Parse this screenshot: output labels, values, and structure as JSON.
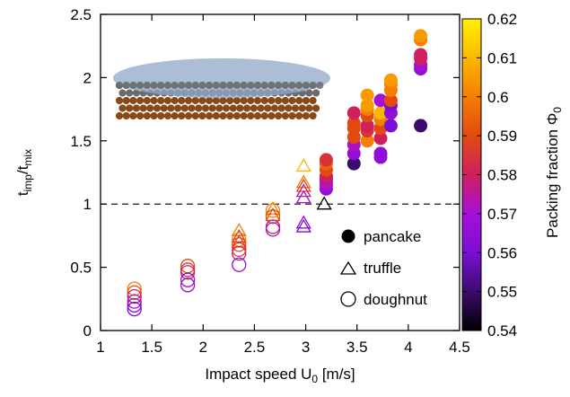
{
  "chart_data": {
    "type": "scatter",
    "xlabel": "Impact speed U",
    "xlabel_sub": "0",
    "xlabel_unit": " [m/s]",
    "ylabel": "t",
    "ylabel_sub1": "imp",
    "ylabel_mid": "/t",
    "ylabel_sub2": "mix",
    "xlim": [
      1,
      4.5
    ],
    "ylim": [
      0,
      2.5
    ],
    "xticks": [
      "1",
      "1.5",
      "2",
      "2.5",
      "3",
      "3.5",
      "4",
      "4.5"
    ],
    "yticks": [
      "0",
      "0.5",
      "1",
      "1.5",
      "2",
      "2.5"
    ],
    "reference_line": {
      "y": 1,
      "style": "dashed"
    },
    "colorbar": {
      "label": "Packing fraction Φ",
      "label_sub": "0",
      "range": [
        0.54,
        0.62
      ],
      "ticks": [
        "0.54",
        "0.55",
        "0.56",
        "0.57",
        "0.58",
        "0.59",
        "0.6",
        "0.61",
        "0.62"
      ],
      "colormap": [
        "#000000",
        "#3a0c6b",
        "#7a0fd4",
        "#a60fd8",
        "#cf1f5e",
        "#e24a10",
        "#f57e05",
        "#fbb800",
        "#fff200"
      ]
    },
    "legend": {
      "position": "lower-right",
      "entries": [
        {
          "label": "pancake",
          "marker": "filled-circle"
        },
        {
          "label": "truffle",
          "marker": "open-triangle"
        },
        {
          "label": "doughnut",
          "marker": "open-circle"
        }
      ]
    },
    "series": [
      {
        "name": "pancake",
        "marker": "filled-circle",
        "points": [
          {
            "x": 3.2,
            "y": 1.12,
            "phi": 0.565
          },
          {
            "x": 3.2,
            "y": 1.15,
            "phi": 0.57
          },
          {
            "x": 3.2,
            "y": 1.18,
            "phi": 0.575
          },
          {
            "x": 3.2,
            "y": 1.2,
            "phi": 0.572
          },
          {
            "x": 3.2,
            "y": 1.22,
            "phi": 0.58
          },
          {
            "x": 3.2,
            "y": 1.27,
            "phi": 0.59
          },
          {
            "x": 3.2,
            "y": 1.32,
            "phi": 0.595
          },
          {
            "x": 3.2,
            "y": 1.35,
            "phi": 0.585
          },
          {
            "x": 3.47,
            "y": 1.32,
            "phi": 0.55
          },
          {
            "x": 3.47,
            "y": 1.4,
            "phi": 0.565
          },
          {
            "x": 3.47,
            "y": 1.47,
            "phi": 0.572
          },
          {
            "x": 3.47,
            "y": 1.53,
            "phi": 0.59
          },
          {
            "x": 3.47,
            "y": 1.6,
            "phi": 0.59
          },
          {
            "x": 3.47,
            "y": 1.64,
            "phi": 0.59
          },
          {
            "x": 3.47,
            "y": 1.72,
            "phi": 0.58
          },
          {
            "x": 3.6,
            "y": 1.5,
            "phi": 0.6
          },
          {
            "x": 3.6,
            "y": 1.58,
            "phi": 0.585
          },
          {
            "x": 3.6,
            "y": 1.62,
            "phi": 0.58
          },
          {
            "x": 3.6,
            "y": 1.7,
            "phi": 0.59
          },
          {
            "x": 3.6,
            "y": 1.75,
            "phi": 0.6
          },
          {
            "x": 3.6,
            "y": 1.78,
            "phi": 0.605
          },
          {
            "x": 3.6,
            "y": 1.86,
            "phi": 0.605
          },
          {
            "x": 3.73,
            "y": 1.37,
            "phi": 0.565
          },
          {
            "x": 3.73,
            "y": 1.4,
            "phi": 0.565
          },
          {
            "x": 3.73,
            "y": 1.52,
            "phi": 0.58
          },
          {
            "x": 3.73,
            "y": 1.6,
            "phi": 0.59
          },
          {
            "x": 3.73,
            "y": 1.67,
            "phi": 0.6
          },
          {
            "x": 3.73,
            "y": 1.72,
            "phi": 0.61
          },
          {
            "x": 3.73,
            "y": 1.82,
            "phi": 0.57
          },
          {
            "x": 3.83,
            "y": 1.62,
            "phi": 0.56
          },
          {
            "x": 3.83,
            "y": 1.72,
            "phi": 0.565
          },
          {
            "x": 3.83,
            "y": 1.78,
            "phi": 0.56
          },
          {
            "x": 3.83,
            "y": 1.82,
            "phi": 0.59
          },
          {
            "x": 3.83,
            "y": 1.9,
            "phi": 0.6
          },
          {
            "x": 3.83,
            "y": 1.95,
            "phi": 0.6
          },
          {
            "x": 3.83,
            "y": 1.98,
            "phi": 0.605
          },
          {
            "x": 4.12,
            "y": 1.62,
            "phi": 0.55
          },
          {
            "x": 4.12,
            "y": 2.07,
            "phi": 0.565
          },
          {
            "x": 4.12,
            "y": 2.1,
            "phi": 0.57
          },
          {
            "x": 4.12,
            "y": 2.15,
            "phi": 0.58
          },
          {
            "x": 4.12,
            "y": 2.18,
            "phi": 0.58
          },
          {
            "x": 4.12,
            "y": 2.3,
            "phi": 0.6
          },
          {
            "x": 4.12,
            "y": 2.33,
            "phi": 0.605
          }
        ]
      },
      {
        "name": "truffle",
        "marker": "open-triangle",
        "points": [
          {
            "x": 2.35,
            "y": 0.79,
            "phi": 0.6
          },
          {
            "x": 2.35,
            "y": 0.74,
            "phi": 0.585
          },
          {
            "x": 2.35,
            "y": 0.7,
            "phi": 0.59
          },
          {
            "x": 2.68,
            "y": 0.96,
            "phi": 0.6
          },
          {
            "x": 2.68,
            "y": 0.91,
            "phi": 0.59
          },
          {
            "x": 2.98,
            "y": 1.3,
            "phi": 0.61
          },
          {
            "x": 2.98,
            "y": 1.17,
            "phi": 0.6
          },
          {
            "x": 2.98,
            "y": 1.14,
            "phi": 0.59
          },
          {
            "x": 2.98,
            "y": 1.1,
            "phi": 0.575
          },
          {
            "x": 2.98,
            "y": 1.05,
            "phi": 0.57
          },
          {
            "x": 2.98,
            "y": 0.85,
            "phi": 0.565
          },
          {
            "x": 2.98,
            "y": 0.82,
            "phi": 0.56
          },
          {
            "x": 3.18,
            "y": 1.0,
            "phi": 0.54
          }
        ]
      },
      {
        "name": "doughnut",
        "marker": "open-circle",
        "points": [
          {
            "x": 1.33,
            "y": 0.33,
            "phi": 0.6
          },
          {
            "x": 1.33,
            "y": 0.3,
            "phi": 0.59
          },
          {
            "x": 1.33,
            "y": 0.27,
            "phi": 0.58
          },
          {
            "x": 1.33,
            "y": 0.23,
            "phi": 0.57
          },
          {
            "x": 1.33,
            "y": 0.2,
            "phi": 0.565
          },
          {
            "x": 1.33,
            "y": 0.17,
            "phi": 0.56
          },
          {
            "x": 1.85,
            "y": 0.51,
            "phi": 0.59
          },
          {
            "x": 1.85,
            "y": 0.48,
            "phi": 0.585
          },
          {
            "x": 1.85,
            "y": 0.46,
            "phi": 0.58
          },
          {
            "x": 1.85,
            "y": 0.4,
            "phi": 0.57
          },
          {
            "x": 1.85,
            "y": 0.36,
            "phi": 0.565
          },
          {
            "x": 2.35,
            "y": 0.72,
            "phi": 0.6
          },
          {
            "x": 2.35,
            "y": 0.68,
            "phi": 0.59
          },
          {
            "x": 2.35,
            "y": 0.64,
            "phi": 0.585
          },
          {
            "x": 2.35,
            "y": 0.61,
            "phi": 0.58
          },
          {
            "x": 2.35,
            "y": 0.52,
            "phi": 0.565
          },
          {
            "x": 2.68,
            "y": 0.95,
            "phi": 0.6
          },
          {
            "x": 2.68,
            "y": 0.9,
            "phi": 0.59
          },
          {
            "x": 2.68,
            "y": 0.82,
            "phi": 0.58
          },
          {
            "x": 2.68,
            "y": 0.8,
            "phi": 0.57
          }
        ]
      }
    ]
  }
}
